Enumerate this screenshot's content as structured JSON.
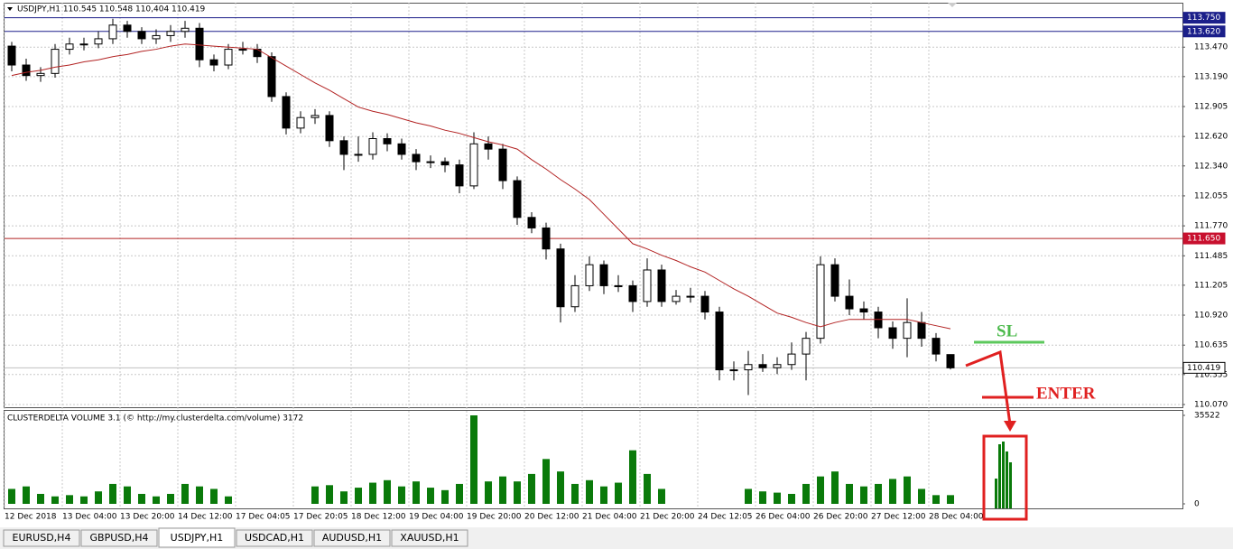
{
  "chart_data": [
    {
      "type": "candlestick",
      "title": "USDJPY,H1  110.545 110.548 110,404 110.419",
      "categories": [
        "12 Dec 2018",
        null,
        null,
        null,
        "13 Dec 04:00",
        null,
        null,
        null,
        "13 Dec 20:00",
        null,
        null,
        null,
        "14 Dec 12:00",
        null,
        null,
        null,
        "17 Dec 04:05",
        null,
        null,
        null,
        "17 Dec 20:05",
        null,
        null,
        null,
        "18 Dec 12:00",
        null,
        null,
        null,
        "19 Dec 04:00",
        null,
        null,
        null,
        "19 Dec 20:00",
        null,
        null,
        null,
        "20 Dec 12:00",
        null,
        null,
        null,
        "21 Dec 04:00",
        null,
        null,
        null,
        "21 Dec 20:00",
        null,
        null,
        null,
        "24 Dec 12:05",
        null,
        null,
        null,
        "26 Dec 04:00",
        null,
        null,
        null,
        "26 Dec 20:00",
        null,
        null,
        null,
        "27 Dec 12:00",
        null,
        null,
        null,
        "28 Dec 04:00",
        null
      ],
      "opens": [
        113.48,
        113.3,
        113.2,
        113.22,
        113.45,
        113.5,
        113.5,
        113.55,
        113.68,
        113.62,
        113.55,
        113.58,
        113.62,
        113.65,
        113.35,
        113.3,
        113.45,
        113.45,
        113.38,
        113.0,
        112.7,
        112.8,
        112.82,
        112.58,
        112.45,
        112.45,
        112.6,
        112.55,
        112.45,
        112.38,
        112.38,
        112.35,
        112.15,
        112.55,
        112.5,
        112.2,
        111.85,
        111.75,
        111.55,
        111.0,
        111.2,
        111.4,
        111.2,
        111.2,
        111.05,
        111.35,
        111.05,
        111.1,
        111.1,
        110.95,
        110.4,
        110.4,
        110.45,
        110.42,
        110.45,
        110.55,
        110.7,
        111.4,
        111.1,
        110.98,
        110.95,
        110.8,
        110.7,
        110.85,
        110.7,
        110.545
      ],
      "highs": [
        113.52,
        113.36,
        113.28,
        113.5,
        113.56,
        113.56,
        113.62,
        113.74,
        113.72,
        113.66,
        113.64,
        113.68,
        113.72,
        113.7,
        113.4,
        113.5,
        113.52,
        113.5,
        113.42,
        113.04,
        112.86,
        112.88,
        112.86,
        112.62,
        112.62,
        112.66,
        112.65,
        112.6,
        112.5,
        112.44,
        112.42,
        112.4,
        112.66,
        112.62,
        112.55,
        112.24,
        111.9,
        111.8,
        111.6,
        111.3,
        111.48,
        111.44,
        111.3,
        111.25,
        111.46,
        111.4,
        111.16,
        111.18,
        111.15,
        111.0,
        110.48,
        110.58,
        110.55,
        110.52,
        110.66,
        110.76,
        111.48,
        111.46,
        111.26,
        111.05,
        111.0,
        110.86,
        111.08,
        110.95,
        110.75,
        110.548
      ],
      "lows": [
        113.24,
        113.15,
        113.14,
        113.18,
        113.4,
        113.44,
        113.46,
        113.5,
        113.56,
        113.5,
        113.5,
        113.52,
        113.56,
        113.28,
        113.24,
        113.26,
        113.4,
        113.32,
        112.95,
        112.64,
        112.65,
        112.74,
        112.52,
        112.3,
        112.38,
        112.4,
        112.48,
        112.4,
        112.3,
        112.32,
        112.28,
        112.08,
        112.12,
        112.4,
        112.12,
        111.78,
        111.7,
        111.45,
        110.85,
        110.95,
        111.15,
        111.12,
        111.14,
        110.95,
        111.0,
        111.0,
        111.02,
        111.04,
        110.88,
        110.3,
        110.3,
        110.16,
        110.38,
        110.36,
        110.4,
        110.3,
        110.65,
        111.05,
        110.92,
        110.88,
        110.7,
        110.6,
        110.52,
        110.62,
        110.48,
        110.404
      ],
      "closes": [
        113.3,
        113.2,
        113.22,
        113.45,
        113.5,
        113.5,
        113.55,
        113.68,
        113.62,
        113.55,
        113.58,
        113.62,
        113.65,
        113.35,
        113.3,
        113.45,
        113.45,
        113.38,
        113.0,
        112.7,
        112.8,
        112.82,
        112.58,
        112.45,
        112.45,
        112.6,
        112.55,
        112.45,
        112.38,
        112.38,
        112.35,
        112.15,
        112.55,
        112.5,
        112.2,
        111.85,
        111.75,
        111.55,
        111.0,
        111.2,
        111.4,
        111.2,
        111.2,
        111.05,
        111.35,
        111.05,
        111.1,
        111.1,
        110.95,
        110.4,
        110.4,
        110.45,
        110.42,
        110.45,
        110.55,
        110.7,
        111.4,
        111.1,
        110.98,
        110.95,
        110.8,
        110.7,
        110.85,
        110.7,
        110.55,
        110.419
      ],
      "moving_average": {
        "color": "#b22222",
        "values": [
          113.2,
          113.23,
          113.25,
          113.28,
          113.3,
          113.33,
          113.35,
          113.38,
          113.4,
          113.43,
          113.45,
          113.48,
          113.5,
          113.49,
          113.48,
          113.47,
          113.46,
          113.45,
          113.37,
          113.29,
          113.21,
          113.13,
          113.06,
          112.98,
          112.9,
          112.86,
          112.83,
          112.79,
          112.75,
          112.72,
          112.68,
          112.65,
          112.61,
          112.57,
          112.54,
          112.5,
          112.4,
          112.31,
          112.21,
          112.12,
          112.02,
          111.88,
          111.74,
          111.6,
          111.55,
          111.49,
          111.44,
          111.38,
          111.33,
          111.25,
          111.17,
          111.1,
          111.02,
          110.94,
          110.9,
          110.85,
          110.81,
          110.85,
          110.88,
          110.88,
          110.88,
          110.88,
          110.88,
          110.85,
          110.82,
          110.79
        ]
      },
      "ylim": [
        110.044,
        113.893
      ],
      "yticks": [
        {
          "value": 113.47,
          "label": "113.470"
        },
        {
          "value": 113.19,
          "label": "113.190"
        },
        {
          "value": 112.905,
          "label": "112.905"
        },
        {
          "value": 112.62,
          "label": "112.620"
        },
        {
          "value": 112.34,
          "label": "112.340"
        },
        {
          "value": 112.055,
          "label": "112.055"
        },
        {
          "value": 111.77,
          "label": "111.770"
        },
        {
          "value": 111.485,
          "label": "111.485"
        },
        {
          "value": 111.205,
          "label": "111.205"
        },
        {
          "value": 110.92,
          "label": "110.920"
        },
        {
          "value": 110.635,
          "label": "110.635"
        },
        {
          "value": 110.355,
          "label": "110.355"
        },
        {
          "value": 110.07,
          "label": "110.070"
        }
      ],
      "levels": [
        {
          "value": 113.75,
          "label": "113.750",
          "color": "#1b1f8a",
          "box": "#1b1f8a"
        },
        {
          "value": 113.62,
          "label": "113.620",
          "color": "#1b1f8a",
          "box": "#1b1f8a"
        },
        {
          "value": 111.65,
          "label": "111.650",
          "color": "#b22222",
          "box": "#c8102e"
        },
        {
          "value": 110.419,
          "label": "110.419",
          "color": "#c0c0c0",
          "box": "#ffffff"
        }
      ],
      "grid": true,
      "annotations": {
        "sl": "SL",
        "enter": "ENTER"
      }
    },
    {
      "type": "bar",
      "title": "CLUSTERDELTA VOLUME 3.1 (© http://my.clusterdelta.com/volume) 3172",
      "color": "#0a7a0a",
      "values": [
        6000,
        7000,
        4000,
        3000,
        3500,
        3000,
        5000,
        8000,
        7000,
        4000,
        3000,
        4000,
        8000,
        7000,
        6000,
        3000,
        null,
        null,
        null,
        null,
        null,
        7000,
        7500,
        5000,
        6500,
        8500,
        9500,
        7000,
        9000,
        6500,
        5500,
        8000,
        35522,
        9000,
        11000,
        9000,
        12000,
        18000,
        13000,
        8000,
        9500,
        7000,
        8500,
        21500,
        12000,
        6000,
        null,
        null,
        null,
        null,
        null,
        6000,
        5000,
        4500,
        4000,
        8000,
        11000,
        13000,
        8000,
        7000,
        8000,
        10000,
        11000,
        6000,
        3500,
        3500
      ],
      "ylim": [
        -1812,
        37334
      ],
      "yticks": [
        0,
        35522
      ]
    }
  ],
  "tabs": [
    "EURUSD,H4",
    "GBPUSD,H4",
    "USDJPY,H1",
    "USDCAD,H1",
    "AUDUSD,H1",
    "XAUUSD,H1"
  ],
  "active_tab": 2
}
